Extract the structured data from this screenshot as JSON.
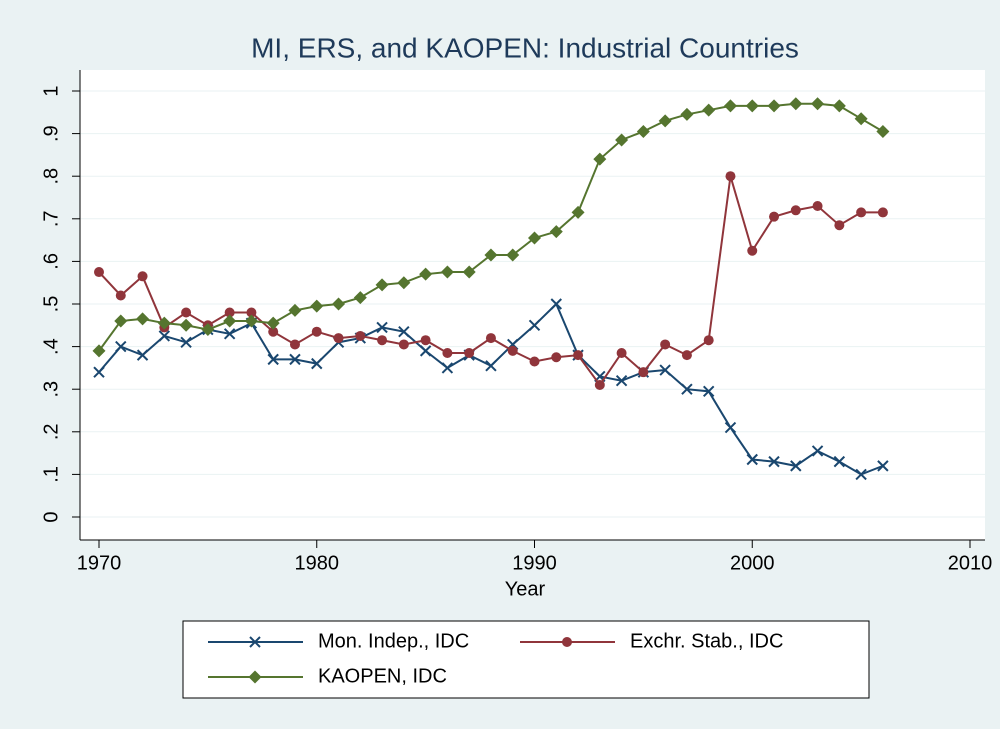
{
  "chart_data": {
    "type": "line",
    "title": "MI, ERS, and KAOPEN: Industrial Countries",
    "x_label": "Year",
    "x": [
      1970,
      1971,
      1972,
      1973,
      1974,
      1975,
      1976,
      1977,
      1978,
      1979,
      1980,
      1981,
      1982,
      1983,
      1984,
      1985,
      1986,
      1987,
      1988,
      1989,
      1990,
      1991,
      1992,
      1993,
      1994,
      1995,
      1996,
      1997,
      1998,
      1999,
      2000,
      2001,
      2002,
      2003,
      2004,
      2005,
      2006
    ],
    "series": [
      {
        "name": "Mon. Indep., IDC",
        "color": "#1a476f",
        "marker": "x",
        "values": [
          0.34,
          0.4,
          0.38,
          0.425,
          0.41,
          0.44,
          0.43,
          0.455,
          0.37,
          0.37,
          0.36,
          0.41,
          0.42,
          0.445,
          0.435,
          0.39,
          0.35,
          0.38,
          0.355,
          0.405,
          0.45,
          0.5,
          0.38,
          0.33,
          0.32,
          0.34,
          0.345,
          0.3,
          0.295,
          0.21,
          0.135,
          0.13,
          0.12,
          0.155,
          0.13,
          0.1,
          0.12
        ]
      },
      {
        "name": "Exchr. Stab., IDC",
        "color": "#90353b",
        "marker": "circle",
        "values": [
          0.575,
          0.52,
          0.565,
          0.445,
          0.48,
          0.45,
          0.48,
          0.48,
          0.435,
          0.405,
          0.435,
          0.42,
          0.425,
          0.415,
          0.405,
          0.415,
          0.385,
          0.385,
          0.42,
          0.39,
          0.365,
          0.375,
          0.38,
          0.31,
          0.385,
          0.34,
          0.405,
          0.38,
          0.415,
          0.8,
          0.625,
          0.705,
          0.72,
          0.73,
          0.685,
          0.715,
          0.715
        ]
      },
      {
        "name": "KAOPEN, IDC",
        "color": "#55752f",
        "marker": "diamond",
        "values": [
          0.39,
          0.46,
          0.465,
          0.455,
          0.45,
          0.44,
          0.46,
          0.46,
          0.455,
          0.485,
          0.495,
          0.5,
          0.515,
          0.545,
          0.55,
          0.57,
          0.575,
          0.575,
          0.615,
          0.615,
          0.655,
          0.67,
          0.715,
          0.84,
          0.885,
          0.905,
          0.93,
          0.945,
          0.955,
          0.965,
          0.965,
          0.965,
          0.97,
          0.97,
          0.965,
          0.935,
          0.905
        ]
      }
    ],
    "xlim": [
      1970,
      2010
    ],
    "xticks": [
      1970,
      1980,
      1990,
      2000,
      2010
    ],
    "ylim": [
      0,
      1
    ],
    "yticks": [
      0,
      {
        "value": 0.1,
        "label": ".1"
      },
      {
        "value": 0.2,
        "label": ".2"
      },
      {
        "value": 0.3,
        "label": ".3"
      },
      {
        "value": 0.4,
        "label": ".4"
      },
      {
        "value": 0.5,
        "label": ".5"
      },
      {
        "value": 0.6,
        "label": ".6"
      },
      {
        "value": 0.7,
        "label": ".7"
      },
      {
        "value": 0.8,
        "label": ".8"
      },
      {
        "value": 0.9,
        "label": ".9"
      },
      1
    ],
    "grid": true,
    "legend": "bottom"
  }
}
